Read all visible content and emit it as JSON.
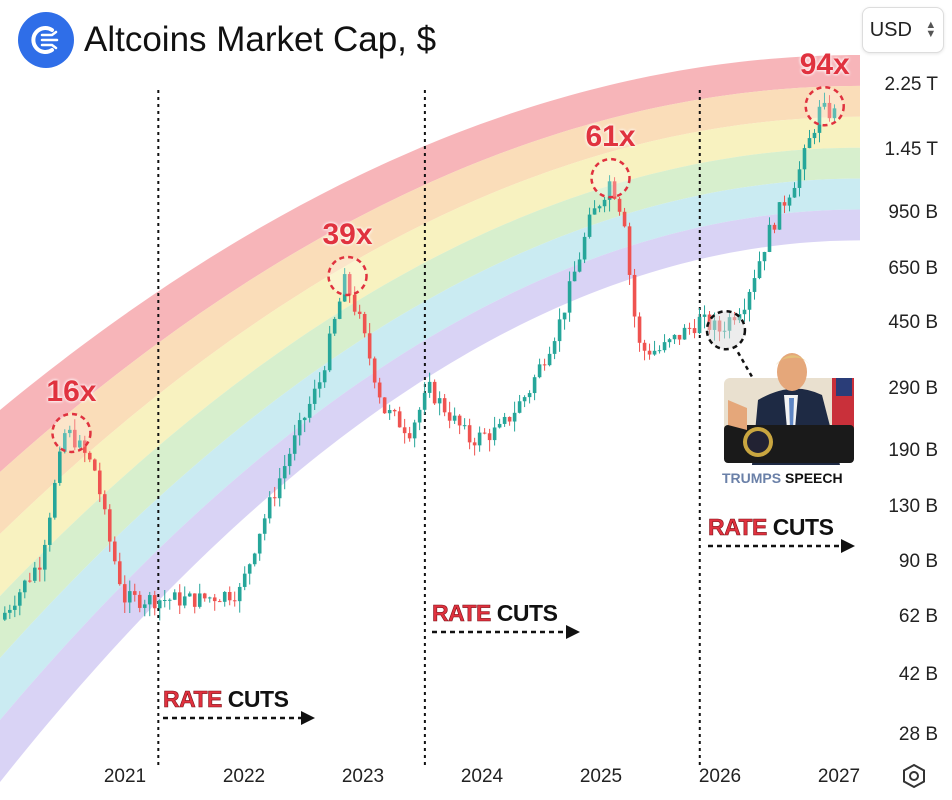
{
  "header": {
    "title": "Altcoins Market Cap, $",
    "currency": "USD"
  },
  "chart_data": {
    "type": "candlestick",
    "title": "Altcoins Market Cap, $",
    "y_scale": "log",
    "ylim_billions": [
      28,
      2250
    ],
    "y_ticks": [
      {
        "label": "2.25 T",
        "v": 2250
      },
      {
        "label": "1.45 T",
        "v": 1450
      },
      {
        "label": "950 B",
        "v": 950
      },
      {
        "label": "650 B",
        "v": 650
      },
      {
        "label": "450 B",
        "v": 450
      },
      {
        "label": "290 B",
        "v": 290
      },
      {
        "label": "190 B",
        "v": 190
      },
      {
        "label": "130 B",
        "v": 130
      },
      {
        "label": "90 B",
        "v": 90
      },
      {
        "label": "62 B",
        "v": 62
      },
      {
        "label": "42 B",
        "v": 42
      },
      {
        "label": "28 B",
        "v": 28
      }
    ],
    "x_ticks": [
      {
        "label": "2021",
        "t": 2021
      },
      {
        "label": "2022",
        "t": 2022
      },
      {
        "label": "2023",
        "t": 2023
      },
      {
        "label": "2024",
        "t": 2024
      },
      {
        "label": "2025",
        "t": 2025
      },
      {
        "label": "2026",
        "t": 2026
      },
      {
        "label": "2027",
        "t": 2027
      }
    ],
    "xlim": [
      2019.95,
      2027.3
    ],
    "price_path_billions": [
      [
        2019.95,
        61
      ],
      [
        2020.29,
        91
      ],
      [
        2020.5,
        219
      ],
      [
        2020.58,
        205
      ],
      [
        2020.75,
        167
      ],
      [
        2020.87,
        104
      ],
      [
        2021.0,
        70
      ],
      [
        2021.29,
        70
      ],
      [
        2021.63,
        70
      ],
      [
        2021.97,
        74
      ],
      [
        2022.13,
        111
      ],
      [
        2022.39,
        191
      ],
      [
        2022.64,
        307
      ],
      [
        2022.85,
        603
      ],
      [
        2022.97,
        460
      ],
      [
        2023.18,
        251
      ],
      [
        2023.39,
        219
      ],
      [
        2023.56,
        288
      ],
      [
        2023.9,
        205
      ],
      [
        2024.15,
        219
      ],
      [
        2024.4,
        288
      ],
      [
        2024.66,
        460
      ],
      [
        2024.91,
        905
      ],
      [
        2025.08,
        1185
      ],
      [
        2025.2,
        905
      ],
      [
        2025.26,
        527
      ],
      [
        2025.33,
        376
      ],
      [
        2025.5,
        376
      ],
      [
        2025.83,
        460
      ],
      [
        2026.0,
        430
      ],
      [
        2026.21,
        527
      ],
      [
        2026.42,
        846
      ],
      [
        2026.67,
        1268
      ],
      [
        2026.84,
        1902
      ],
      [
        2027.01,
        1838
      ]
    ],
    "rainbow_bands": [
      "#f5a3a8",
      "#f9d5a8",
      "#f6efb0",
      "#cdebc0",
      "#bde6ef",
      "#cfc8f2"
    ],
    "up_color": "#26a69a",
    "down_color": "#ef5350",
    "annotations": [
      {
        "label": "16x",
        "t": 2020.55,
        "v": 215
      },
      {
        "label": "39x",
        "t": 2022.87,
        "v": 620
      },
      {
        "label": "61x",
        "t": 2025.08,
        "v": 1200
      },
      {
        "label": "94x",
        "t": 2026.88,
        "v": 1950
      }
    ],
    "rate_cut_lines": [
      2021.28,
      2023.52,
      2025.83
    ],
    "rate_cut_label": {
      "rate": "RATE",
      "cuts": "CUTS"
    },
    "speech": {
      "a": "TRUMPS",
      "b": "SPEECH",
      "t": 2026.05,
      "v": 430
    }
  }
}
